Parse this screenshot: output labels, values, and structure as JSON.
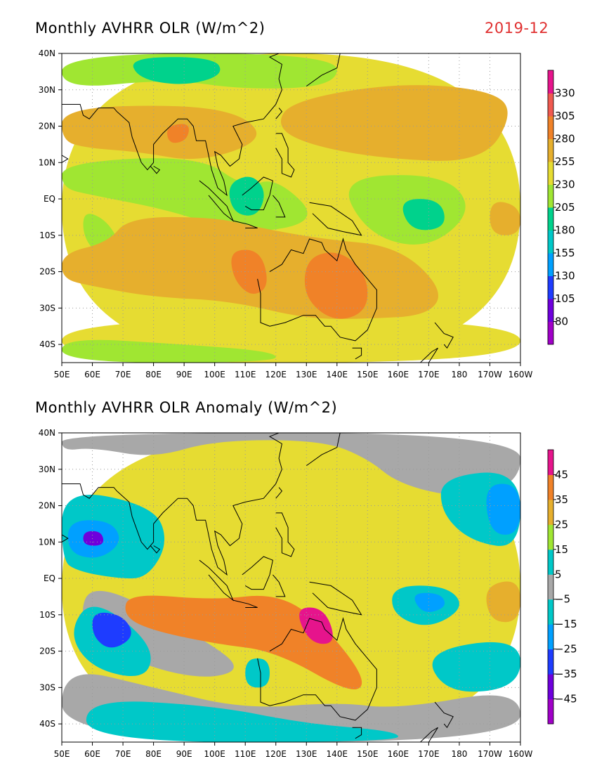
{
  "date_label": "2019-12",
  "colors": {
    "date": "#e03030",
    "scale": [
      "#a000c8",
      "#6e00dc",
      "#1e3cff",
      "#00a0ff",
      "#00c8c8",
      "#00d28c",
      "#a0e632",
      "#e6dc32",
      "#e6af2d",
      "#f08228",
      "#f05a50",
      "#e6148c"
    ],
    "gray": "#a8a8a8"
  },
  "chart_data": [
    {
      "type": "heatmap",
      "title": "Monthly AVHRR OLR (W/m^2)",
      "x_ticks": [
        "50E",
        "60E",
        "70E",
        "80E",
        "90E",
        "100E",
        "110E",
        "120E",
        "130E",
        "140E",
        "150E",
        "160E",
        "170E",
        "180",
        "170W",
        "160W"
      ],
      "y_ticks": [
        "40N",
        "30N",
        "20N",
        "10N",
        "EQ",
        "10S",
        "20S",
        "30S",
        "40S"
      ],
      "colorbar_labels": [
        "330",
        "305",
        "280",
        "255",
        "230",
        "205",
        "180",
        "155",
        "130",
        "105",
        "80"
      ],
      "contour_levels": [
        80,
        105,
        130,
        155,
        180,
        205,
        230,
        255,
        280,
        305,
        330
      ],
      "xlim": [
        "50E",
        "160W"
      ],
      "ylim": [
        "45S",
        "40N"
      ],
      "grid": true
    },
    {
      "type": "heatmap",
      "title": "Monthly AVHRR OLR Anomaly (W/m^2)",
      "x_ticks": [
        "50E",
        "60E",
        "70E",
        "80E",
        "90E",
        "100E",
        "110E",
        "120E",
        "130E",
        "140E",
        "150E",
        "160E",
        "170E",
        "180",
        "170W",
        "160W"
      ],
      "y_ticks": [
        "40N",
        "30N",
        "20N",
        "10N",
        "EQ",
        "10S",
        "20S",
        "30S",
        "40S"
      ],
      "colorbar_labels": [
        "45",
        "35",
        "25",
        "15",
        "5",
        "−5",
        "−15",
        "−25",
        "−35",
        "−45"
      ],
      "contour_levels": [
        -45,
        -35,
        -25,
        -15,
        -5,
        5,
        15,
        25,
        35,
        45
      ],
      "xlim": [
        "50E",
        "160W"
      ],
      "ylim": [
        "45S",
        "40N"
      ],
      "grid": true
    }
  ]
}
